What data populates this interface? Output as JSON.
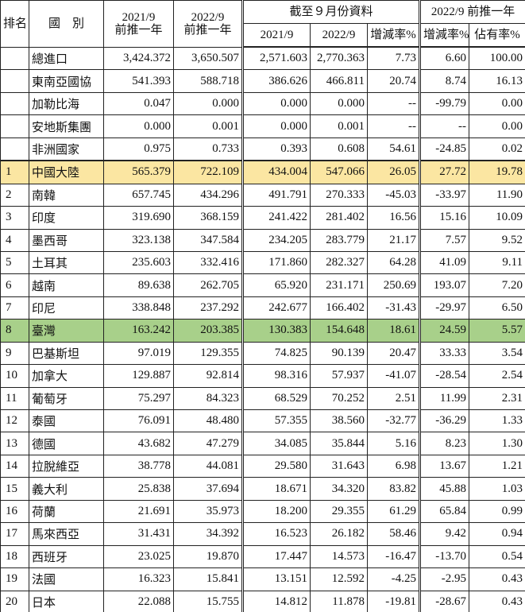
{
  "header": {
    "rank": "排名",
    "country": "國　別",
    "prev_2021": {
      "year": "2021/9",
      "label": "前推一年"
    },
    "prev_2022": {
      "year": "2022/9",
      "label": "前推一年"
    },
    "ytd": {
      "title": "截至９月份資料",
      "cols": [
        "2021/9",
        "2022/9",
        "增減率%"
      ]
    },
    "trailing": {
      "title": "2022/9 前推一年",
      "cols": [
        "增減率%",
        "佔有率%"
      ]
    }
  },
  "rows": [
    {
      "rank": null,
      "name": "總進口",
      "values": [
        "3,424.372",
        "3,650.507",
        "2,571.603",
        "2,770.363",
        "7.73",
        "6.60",
        "100.00"
      ]
    },
    {
      "rank": null,
      "name": "東南亞國協",
      "values": [
        "541.393",
        "588.718",
        "386.626",
        "466.811",
        "20.74",
        "8.74",
        "16.13"
      ]
    },
    {
      "rank": null,
      "name": "加勒比海",
      "values": [
        "0.047",
        "0.000",
        "0.000",
        "0.000",
        "--",
        "-99.79",
        "0.00"
      ]
    },
    {
      "rank": null,
      "name": "安地斯集團",
      "values": [
        "0.000",
        "0.001",
        "0.000",
        "0.001",
        "--",
        "--",
        "0.00"
      ]
    },
    {
      "rank": null,
      "name": "非洲國家",
      "values": [
        "0.975",
        "0.733",
        "0.393",
        "0.608",
        "54.61",
        "-24.85",
        "0.02"
      ]
    },
    {
      "rank": "1",
      "name": "中國大陸",
      "color": "#fbe6a2",
      "values": [
        "565.379",
        "722.109",
        "434.004",
        "547.066",
        "26.05",
        "27.72",
        "19.78"
      ]
    },
    {
      "rank": "2",
      "name": "南韓",
      "values": [
        "657.745",
        "434.296",
        "491.791",
        "270.333",
        "-45.03",
        "-33.97",
        "11.90"
      ]
    },
    {
      "rank": "3",
      "name": "印度",
      "values": [
        "319.690",
        "368.159",
        "241.422",
        "281.402",
        "16.56",
        "15.16",
        "10.09"
      ]
    },
    {
      "rank": "4",
      "name": "墨西哥",
      "values": [
        "323.138",
        "347.584",
        "234.205",
        "283.779",
        "21.17",
        "7.57",
        "9.52"
      ]
    },
    {
      "rank": "5",
      "name": "土耳其",
      "values": [
        "235.603",
        "332.416",
        "171.860",
        "282.327",
        "64.28",
        "41.09",
        "9.11"
      ]
    },
    {
      "rank": "6",
      "name": "越南",
      "values": [
        "89.638",
        "262.705",
        "65.920",
        "231.171",
        "250.69",
        "193.07",
        "7.20"
      ]
    },
    {
      "rank": "7",
      "name": "印尼",
      "values": [
        "338.848",
        "237.292",
        "242.677",
        "166.402",
        "-31.43",
        "-29.97",
        "6.50"
      ]
    },
    {
      "rank": "8",
      "name": "臺灣",
      "color": "#a8d08a",
      "values": [
        "163.242",
        "203.385",
        "130.383",
        "154.648",
        "18.61",
        "24.59",
        "5.57"
      ]
    },
    {
      "rank": "9",
      "name": "巴基斯坦",
      "values": [
        "97.019",
        "129.355",
        "74.825",
        "90.139",
        "20.47",
        "33.33",
        "3.54"
      ]
    },
    {
      "rank": "10",
      "name": "加拿大",
      "values": [
        "129.887",
        "92.814",
        "98.316",
        "57.937",
        "-41.07",
        "-28.54",
        "2.54"
      ]
    },
    {
      "rank": "11",
      "name": "葡萄牙",
      "values": [
        "75.297",
        "84.323",
        "68.529",
        "70.252",
        "2.51",
        "11.99",
        "2.31"
      ]
    },
    {
      "rank": "12",
      "name": "泰國",
      "values": [
        "76.091",
        "48.480",
        "57.355",
        "38.560",
        "-32.77",
        "-36.29",
        "1.33"
      ]
    },
    {
      "rank": "13",
      "name": "德國",
      "values": [
        "43.682",
        "47.279",
        "34.085",
        "35.844",
        "5.16",
        "8.23",
        "1.30"
      ]
    },
    {
      "rank": "14",
      "name": "拉脫維亞",
      "values": [
        "38.778",
        "44.081",
        "29.580",
        "31.643",
        "6.98",
        "13.67",
        "1.21"
      ]
    },
    {
      "rank": "15",
      "name": "義大利",
      "values": [
        "25.838",
        "37.694",
        "18.671",
        "34.320",
        "83.82",
        "45.88",
        "1.03"
      ]
    },
    {
      "rank": "16",
      "name": "荷蘭",
      "values": [
        "21.691",
        "35.973",
        "18.200",
        "29.355",
        "61.29",
        "65.84",
        "0.99"
      ]
    },
    {
      "rank": "17",
      "name": "馬來西亞",
      "values": [
        "31.431",
        "34.392",
        "16.523",
        "26.182",
        "58.46",
        "9.42",
        "0.94"
      ]
    },
    {
      "rank": "18",
      "name": "西班牙",
      "values": [
        "23.025",
        "19.870",
        "17.447",
        "14.573",
        "-16.47",
        "-13.70",
        "0.54"
      ]
    },
    {
      "rank": "19",
      "name": "法國",
      "values": [
        "16.323",
        "15.841",
        "13.151",
        "12.592",
        "-4.25",
        "-2.95",
        "0.43"
      ]
    },
    {
      "rank": "20",
      "name": "日本",
      "values": [
        "22.088",
        "15.755",
        "14.812",
        "11.878",
        "-19.81",
        "-28.67",
        "0.43"
      ]
    }
  ]
}
